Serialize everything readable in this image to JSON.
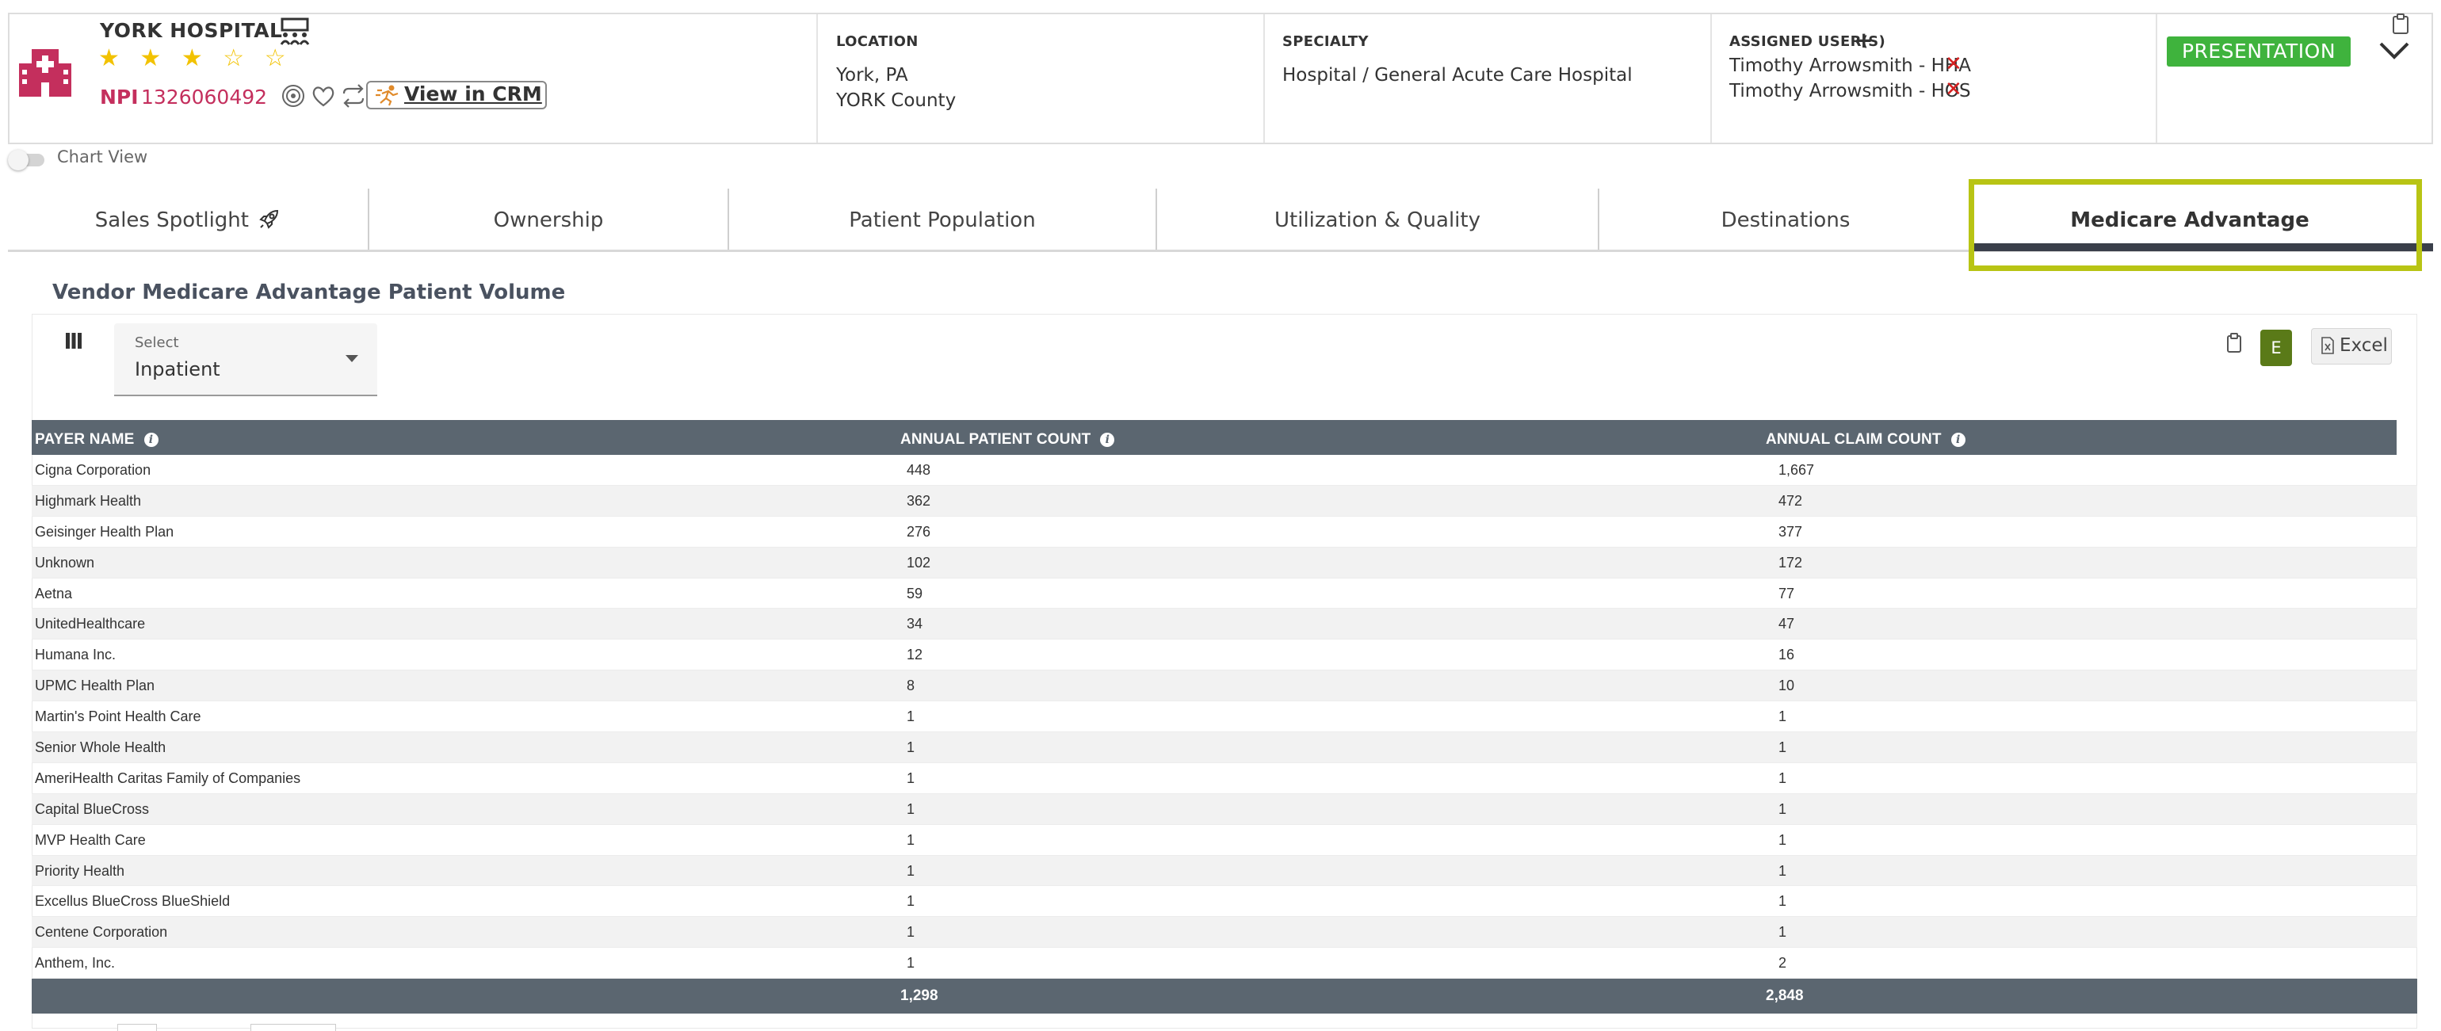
{
  "header": {
    "hospital_name": "YORK HOSPITAL",
    "rating": 3,
    "rating_max": 5,
    "stars_text": "★ ★ ★ ☆ ☆",
    "npi_label": "NPI",
    "npi_number": "1326060492",
    "crm_label": "View in CRM",
    "location_label": "LOCATION",
    "location_city": "York, PA",
    "location_county": "YORK County",
    "specialty_label": "SPECIALTY",
    "specialty_value": "Hospital / General Acute Care Hospital",
    "assigned_label": "ASSIGNED USER(S)",
    "assigned_add": "+",
    "assigned_users": [
      "Timothy Arrowsmith - HHA",
      "Timothy Arrowsmith - HOS"
    ],
    "remove_mark": "✕",
    "status_badge": "PRESENTATION",
    "accent_color": "#c42f5d",
    "badge_color": "#3fb33d"
  },
  "chart_view_label": "Chart View",
  "tabs": [
    {
      "label": "Sales Spotlight",
      "icon": "rocket-icon"
    },
    {
      "label": "Ownership"
    },
    {
      "label": "Patient Population"
    },
    {
      "label": "Utilization & Quality"
    },
    {
      "label": "Destinations"
    },
    {
      "label": "Medicare Advantage",
      "active": true
    }
  ],
  "section": {
    "title": "Vendor Medicare Advantage Patient Volume",
    "select_label": "Select",
    "select_value": "Inpatient",
    "e_button": "E",
    "excel_button": "Excel"
  },
  "table": {
    "headers": [
      "PAYER NAME",
      "ANNUAL PATIENT COUNT",
      "ANNUAL CLAIM COUNT"
    ],
    "rows": [
      [
        "Cigna Corporation",
        "448",
        "1,667"
      ],
      [
        "Highmark Health",
        "362",
        "472"
      ],
      [
        "Geisinger Health Plan",
        "276",
        "377"
      ],
      [
        "Unknown",
        "102",
        "172"
      ],
      [
        "Aetna",
        "59",
        "77"
      ],
      [
        "UnitedHealthcare",
        "34",
        "47"
      ],
      [
        "Humana Inc.",
        "12",
        "16"
      ],
      [
        "UPMC Health Plan",
        "8",
        "10"
      ],
      [
        "Martin's Point Health Care",
        "1",
        "1"
      ],
      [
        "Senior Whole Health",
        "1",
        "1"
      ],
      [
        "AmeriHealth Caritas Family of Companies",
        "1",
        "1"
      ],
      [
        "Capital BlueCross",
        "1",
        "1"
      ],
      [
        "MVP Health Care",
        "1",
        "1"
      ],
      [
        "Priority Health",
        "1",
        "1"
      ],
      [
        "Excellus BlueCross BlueShield",
        "1",
        "1"
      ],
      [
        "Centene Corporation",
        "1",
        "1"
      ],
      [
        "Anthem, Inc.",
        "1",
        "2"
      ]
    ],
    "totals": [
      "1,298",
      "2,848"
    ]
  }
}
